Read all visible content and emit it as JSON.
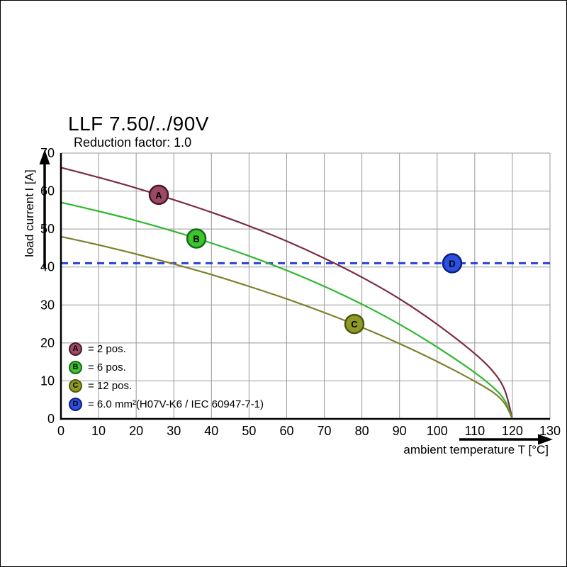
{
  "chart_data": {
    "type": "line",
    "title": "LLF 7.50/../90V",
    "subtitle": "Reduction factor: 1.0",
    "xlabel": "ambient temperature T [°C]",
    "ylabel": "load current I [A]",
    "xlim": [
      0,
      130
    ],
    "ylim": [
      0,
      70
    ],
    "x_ticks": [
      0,
      10,
      20,
      30,
      40,
      50,
      60,
      70,
      80,
      90,
      100,
      110,
      120,
      130
    ],
    "y_ticks": [
      0,
      10,
      20,
      30,
      40,
      50,
      60,
      70
    ],
    "grid": true,
    "grid_color": "#999999",
    "legend_position": "inside-bottom-left",
    "series": [
      {
        "id": "a",
        "name": "A = 2 pos.",
        "color": "#7b2b45",
        "points": [
          [
            0,
            66.2
          ],
          [
            10,
            63.6
          ],
          [
            20,
            60.8
          ],
          [
            30,
            57.7
          ],
          [
            40,
            54.4
          ],
          [
            50,
            50.8
          ],
          [
            60,
            46.8
          ],
          [
            70,
            42.3
          ],
          [
            80,
            37.3
          ],
          [
            90,
            31.6
          ],
          [
            100,
            24.9
          ],
          [
            110,
            17.2
          ],
          [
            115,
            12.3
          ],
          [
            118,
            7.5
          ],
          [
            120,
            0
          ]
        ]
      },
      {
        "id": "b",
        "name": "B = 6 pos.",
        "color": "#2eb82e",
        "points": [
          [
            0,
            57
          ],
          [
            10,
            54.7
          ],
          [
            20,
            52.2
          ],
          [
            30,
            49.4
          ],
          [
            40,
            46.3
          ],
          [
            50,
            42.9
          ],
          [
            60,
            39.1
          ],
          [
            70,
            34.9
          ],
          [
            80,
            30.2
          ],
          [
            90,
            24.9
          ],
          [
            100,
            18.9
          ],
          [
            110,
            12.2
          ],
          [
            115,
            8.2
          ],
          [
            118,
            4.8
          ],
          [
            120,
            0
          ]
        ]
      },
      {
        "id": "c",
        "name": "C = 12 pos.",
        "color": "#7f7f2d",
        "points": [
          [
            0,
            48
          ],
          [
            10,
            45.8
          ],
          [
            20,
            43.4
          ],
          [
            30,
            40.8
          ],
          [
            40,
            38.0
          ],
          [
            50,
            34.9
          ],
          [
            60,
            31.6
          ],
          [
            70,
            28.0
          ],
          [
            80,
            24.1
          ],
          [
            90,
            19.8
          ],
          [
            100,
            15.1
          ],
          [
            110,
            9.9
          ],
          [
            115,
            6.9
          ],
          [
            118,
            4.0
          ],
          [
            120,
            0
          ]
        ]
      }
    ],
    "ref_line": {
      "name": "D = 6.0 mm²(H07V-K6 / IEC 60947-7-1)",
      "y": 41,
      "x1": 0,
      "x2": 130,
      "color": "#2741d8",
      "style": "dashed"
    },
    "markers": [
      {
        "letter": "A",
        "x": 26,
        "y": 59,
        "fill": "#9c4a64",
        "stroke": "#47172a"
      },
      {
        "letter": "B",
        "x": 36,
        "y": 47.5,
        "fill": "#3ec42c",
        "stroke": "#14691a"
      },
      {
        "letter": "C",
        "x": 78,
        "y": 25,
        "fill": "#8f9925",
        "stroke": "#4f5614"
      },
      {
        "letter": "D",
        "x": 104,
        "y": 41,
        "fill": "#2b50e2",
        "stroke": "#0d1f7a"
      }
    ]
  },
  "legend": {
    "items": [
      {
        "letter": "A",
        "label": "= 2 pos.",
        "fill": "#9c4a64",
        "stroke": "#47172a"
      },
      {
        "letter": "B",
        "label": "= 6 pos.",
        "fill": "#3ec42c",
        "stroke": "#14691a"
      },
      {
        "letter": "C",
        "label": "= 12 pos.",
        "fill": "#8f9925",
        "stroke": "#4f5614"
      },
      {
        "letter": "D",
        "label": "= 6.0 mm²(H07V-K6 / IEC 60947-7-1)",
        "fill": "#2b50e2",
        "stroke": "#0d1f7a"
      }
    ]
  }
}
